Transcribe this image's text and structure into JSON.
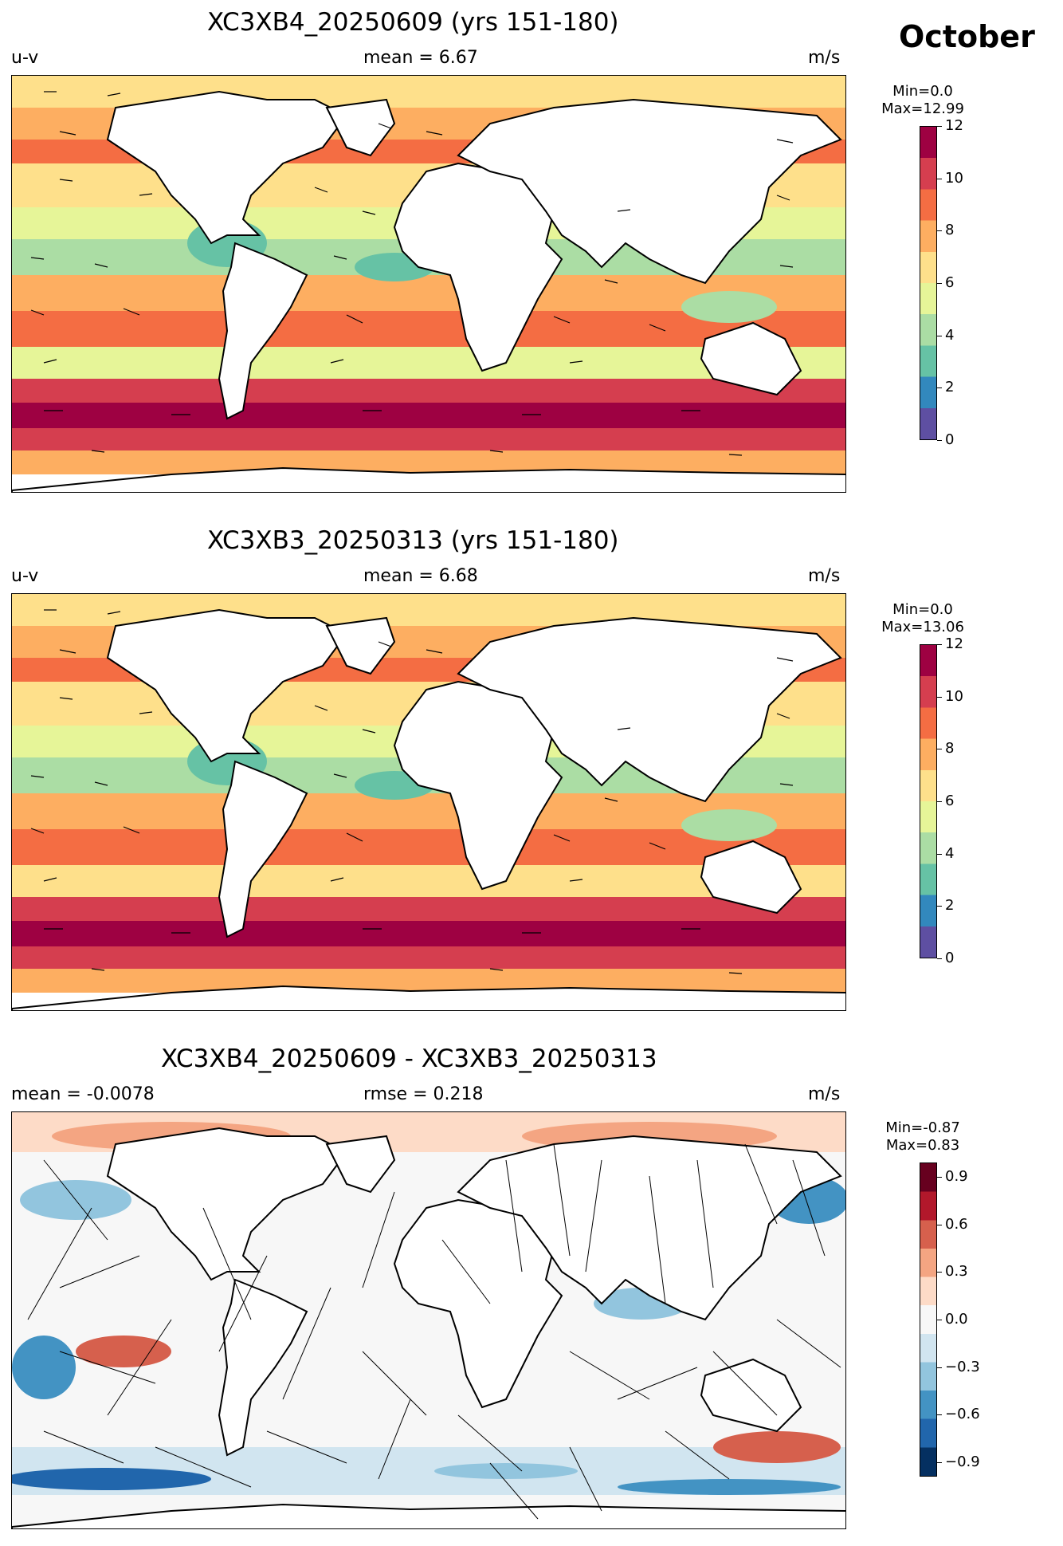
{
  "month": "October",
  "panels": [
    {
      "id": "p1",
      "title": "XC3XB4_20250609 (yrs 151-180)",
      "left_label": "u-v",
      "center_label": "mean = 6.67",
      "right_label": "m/s",
      "stats": [
        "Min=0.0",
        "Max=12.99"
      ],
      "colorbar": {
        "ticks": [
          "0",
          "2",
          "4",
          "6",
          "8",
          "10",
          "12"
        ],
        "colors": [
          "#5e4fa2",
          "#3288bd",
          "#66c2a5",
          "#abdda4",
          "#e6f598",
          "#fee08b",
          "#fdae61",
          "#f46d43",
          "#d53e4f",
          "#9e0142"
        ]
      }
    },
    {
      "id": "p2",
      "title": "XC3XB3_20250313 (yrs 151-180)",
      "left_label": "u-v",
      "center_label": "mean = 6.68",
      "right_label": "m/s",
      "stats": [
        "Min=0.0",
        "Max=13.06"
      ],
      "colorbar": {
        "ticks": [
          "0",
          "2",
          "4",
          "6",
          "8",
          "10",
          "12"
        ],
        "colors": [
          "#5e4fa2",
          "#3288bd",
          "#66c2a5",
          "#abdda4",
          "#e6f598",
          "#fee08b",
          "#fdae61",
          "#f46d43",
          "#d53e4f",
          "#9e0142"
        ]
      }
    },
    {
      "id": "p3",
      "title": "XC3XB4_20250609 - XC3XB3_20250313",
      "left_label": "mean = -0.0078",
      "center_label": "rmse = 0.218",
      "right_label": "m/s",
      "stats": [
        "Min=-0.87",
        "Max=0.83"
      ],
      "colorbar": {
        "ticks": [
          "0.9",
          "0.6",
          "0.3",
          "0.0",
          "−0.3",
          "−0.6",
          "−0.9"
        ],
        "colors": [
          "#053061",
          "#2166ac",
          "#4393c3",
          "#92c5de",
          "#d1e5f0",
          "#f7f7f7",
          "#fddbc7",
          "#f4a582",
          "#d6604d",
          "#b2182b",
          "#67001f"
        ]
      }
    }
  ]
}
